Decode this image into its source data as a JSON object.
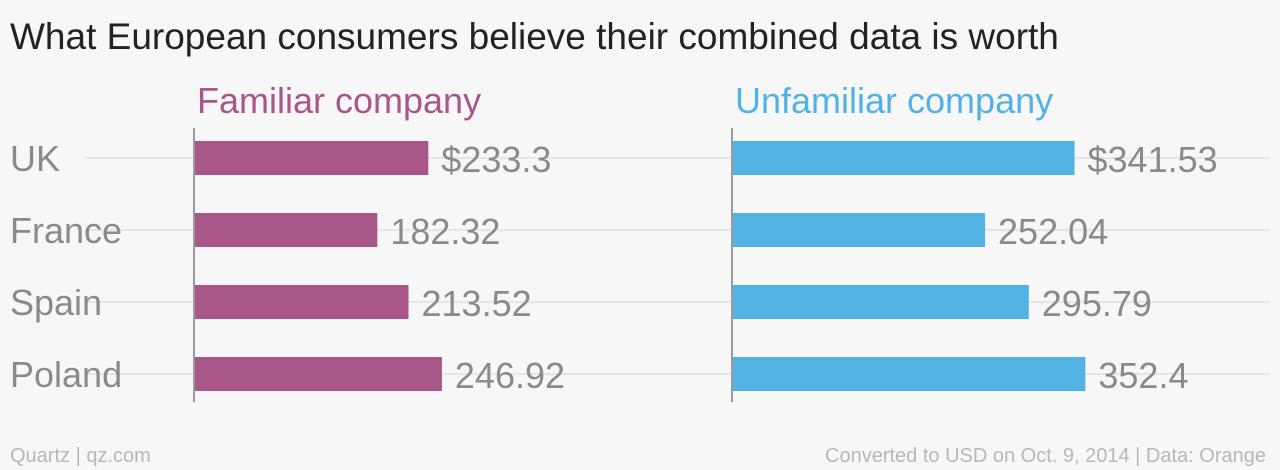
{
  "chart_data": {
    "type": "bar",
    "orientation": "horizontal",
    "title": "What European consumers believe their combined data is worth",
    "categories": [
      "UK",
      "France",
      "Spain",
      "Poland"
    ],
    "series": [
      {
        "name": "Familiar company",
        "color": "#a95688",
        "values": [
          233.3,
          182.32,
          213.52,
          246.92
        ],
        "value_labels": [
          "$233.3",
          "182.32",
          "213.52",
          "246.92"
        ]
      },
      {
        "name": "Unfamiliar company",
        "color": "#52b2e3",
        "values": [
          341.53,
          252.04,
          295.79,
          352.4
        ],
        "value_labels": [
          "$341.53",
          "252.04",
          "295.79",
          "352.4"
        ]
      }
    ],
    "xlim": [
      0,
      400
    ],
    "grid": true,
    "layout": "small multiples, side by side"
  },
  "footer": {
    "source_left": "Quartz | qz.com",
    "source_right": "Converted to USD on Oct. 9, 2014 | Data: Orange"
  }
}
